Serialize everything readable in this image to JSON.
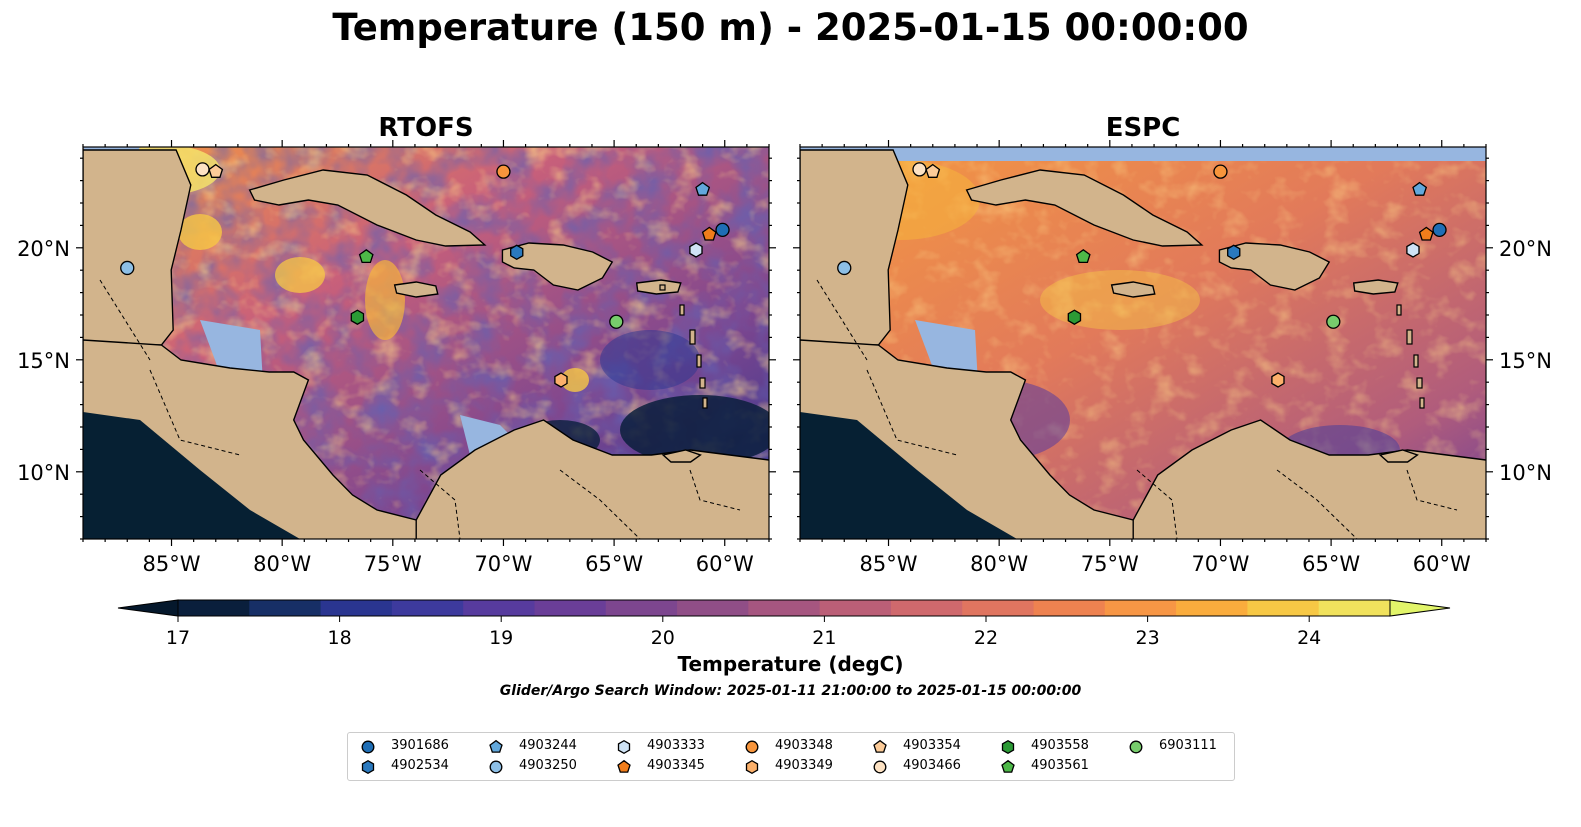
{
  "figure_title": "Temperature (150 m) - 2025-01-15 00:00:00",
  "panels": [
    {
      "name": "RTOFS"
    },
    {
      "name": "ESPC"
    }
  ],
  "lon_ticks": [
    "85°W",
    "80°W",
    "75°W",
    "70°W",
    "65°W",
    "60°W"
  ],
  "lat_ticks": [
    "20°N",
    "15°N",
    "10°N"
  ],
  "colorbar": {
    "label": "Temperature (degC)",
    "ticks": [
      "17",
      "18",
      "19",
      "20",
      "21",
      "22",
      "23",
      "24"
    ],
    "colors": [
      "#0a1f3c",
      "#172f66",
      "#2a3590",
      "#3d3a9d",
      "#573b9e",
      "#6a3e98",
      "#7d468f",
      "#904e87",
      "#a65680",
      "#bb5f77",
      "#cf696d",
      "#e07560",
      "#ee8250",
      "#f79645",
      "#faac3d",
      "#f7c845",
      "#f1e25d"
    ],
    "extend_low_color": "#05182c",
    "extend_high_color": "#e2f56a"
  },
  "search_window": "Glider/Argo Search Window: 2025-01-11 21:00:00 to 2025-01-15 00:00:00",
  "map_colors": {
    "land": "#d2b48c",
    "shallow_water": "#97b6e0",
    "deep_mask": "#062033",
    "warm": "#f4a23f",
    "hot": "#f5e26a"
  },
  "floats": [
    {
      "id": "3901686",
      "marker": "circle",
      "color": "#1f6eb5"
    },
    {
      "id": "4902534",
      "marker": "hexagon",
      "color": "#2a79be"
    },
    {
      "id": "4903244",
      "marker": "pentagon",
      "color": "#62a8dc"
    },
    {
      "id": "4903250",
      "marker": "circle",
      "color": "#8dbfe6"
    },
    {
      "id": "4903333",
      "marker": "hexagon",
      "color": "#cfe3f5"
    },
    {
      "id": "4903345",
      "marker": "pentagon",
      "color": "#f07d1b"
    },
    {
      "id": "4903348",
      "marker": "circle",
      "color": "#f7953c"
    },
    {
      "id": "4903349",
      "marker": "hexagon",
      "color": "#fbb06b"
    },
    {
      "id": "4903354",
      "marker": "pentagon",
      "color": "#fccb98"
    },
    {
      "id": "4903466",
      "marker": "circle",
      "color": "#fde2c3"
    },
    {
      "id": "4903558",
      "marker": "hexagon",
      "color": "#2b9a35"
    },
    {
      "id": "4903561",
      "marker": "pentagon",
      "color": "#4db848"
    },
    {
      "id": "6903111",
      "marker": "circle",
      "color": "#77cc6c"
    }
  ],
  "float_positions": [
    {
      "id": "3901686",
      "lon": -60.1,
      "lat": 20.8
    },
    {
      "id": "4902534",
      "lon": -69.4,
      "lat": 19.8
    },
    {
      "id": "4903244",
      "lon": -61.0,
      "lat": 22.6
    },
    {
      "id": "4903250",
      "lon": -87.0,
      "lat": 19.1
    },
    {
      "id": "4903333",
      "lon": -61.3,
      "lat": 19.9
    },
    {
      "id": "4903345",
      "lon": -60.7,
      "lat": 20.6
    },
    {
      "id": "4903348",
      "lon": -70.0,
      "lat": 23.4
    },
    {
      "id": "4903349",
      "lon": -67.4,
      "lat": 14.1
    },
    {
      "id": "4903354",
      "lon": -83.0,
      "lat": 23.4
    },
    {
      "id": "4903466",
      "lon": -83.6,
      "lat": 23.5
    },
    {
      "id": "4903558",
      "lon": -76.6,
      "lat": 16.9
    },
    {
      "id": "4903561",
      "lon": -76.2,
      "lat": 19.6
    },
    {
      "id": "6903111",
      "lon": -64.9,
      "lat": 16.7
    }
  ]
}
